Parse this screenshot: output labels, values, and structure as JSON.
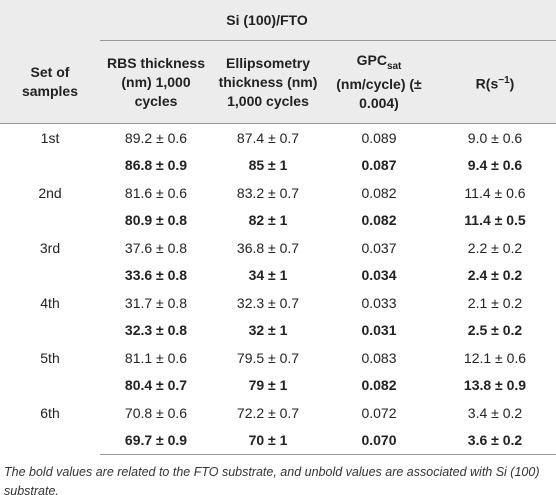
{
  "table": {
    "title": "Si (100)/FTO",
    "header": [
      "Set of samples",
      "RBS thickness (nm) 1,000 cycles",
      "Ellipsometry thickness (nm) 1,000 cycles",
      {
        "text": "GPC",
        "sub": "sat",
        "rest": " (nm/cycle) (± 0.004)"
      },
      {
        "text": "R(s",
        "sup": "−1",
        "rest": ")"
      }
    ],
    "groups": [
      {
        "set": "1st",
        "rows": [
          [
            "89.2 ± 0.6",
            "87.4 ± 0.7",
            "0.089",
            "9.0 ± 0.6"
          ],
          [
            "86.8 ± 0.9",
            "85 ± 1",
            "0.087",
            "9.4 ± 0.6"
          ]
        ]
      },
      {
        "set": "2nd",
        "rows": [
          [
            "81.6 ± 0.6",
            "83.2 ± 0.7",
            "0.082",
            "11.4 ± 0.6"
          ],
          [
            "80.9 ± 0.8",
            "82 ± 1",
            "0.082",
            "11.4 ± 0.5"
          ]
        ]
      },
      {
        "set": "3rd",
        "rows": [
          [
            "37.6 ± 0.8",
            "36.8 ± 0.7",
            "0.037",
            "2.2 ± 0.2"
          ],
          [
            "33.6 ± 0.8",
            "34 ± 1",
            "0.034",
            "2.4 ± 0.2"
          ]
        ]
      },
      {
        "set": "4th",
        "rows": [
          [
            "31.7 ± 0.8",
            "32.3 ± 0.7",
            "0.033",
            "2.1 ± 0.2"
          ],
          [
            "32.3 ± 0.8",
            "32 ± 1",
            "0.031",
            "2.5 ± 0.2"
          ]
        ]
      },
      {
        "set": "5th",
        "rows": [
          [
            "81.1 ± 0.6",
            "79.5 ± 0.7",
            "0.083",
            "12.1 ± 0.6"
          ],
          [
            "80.4 ± 0.7",
            "79 ± 1",
            "0.082",
            "13.8 ± 0.9"
          ]
        ]
      },
      {
        "set": "6th",
        "rows": [
          [
            "70.8 ± 0.6",
            "72.2 ± 0.7",
            "0.072",
            "3.4 ± 0.2"
          ],
          [
            "69.7 ± 0.9",
            "70 ± 1",
            "0.070",
            "3.6 ± 0.2"
          ]
        ]
      }
    ],
    "footnote": "The bold values are related to the FTO substrate, and unbold values are associated with Si (100) substrate."
  }
}
